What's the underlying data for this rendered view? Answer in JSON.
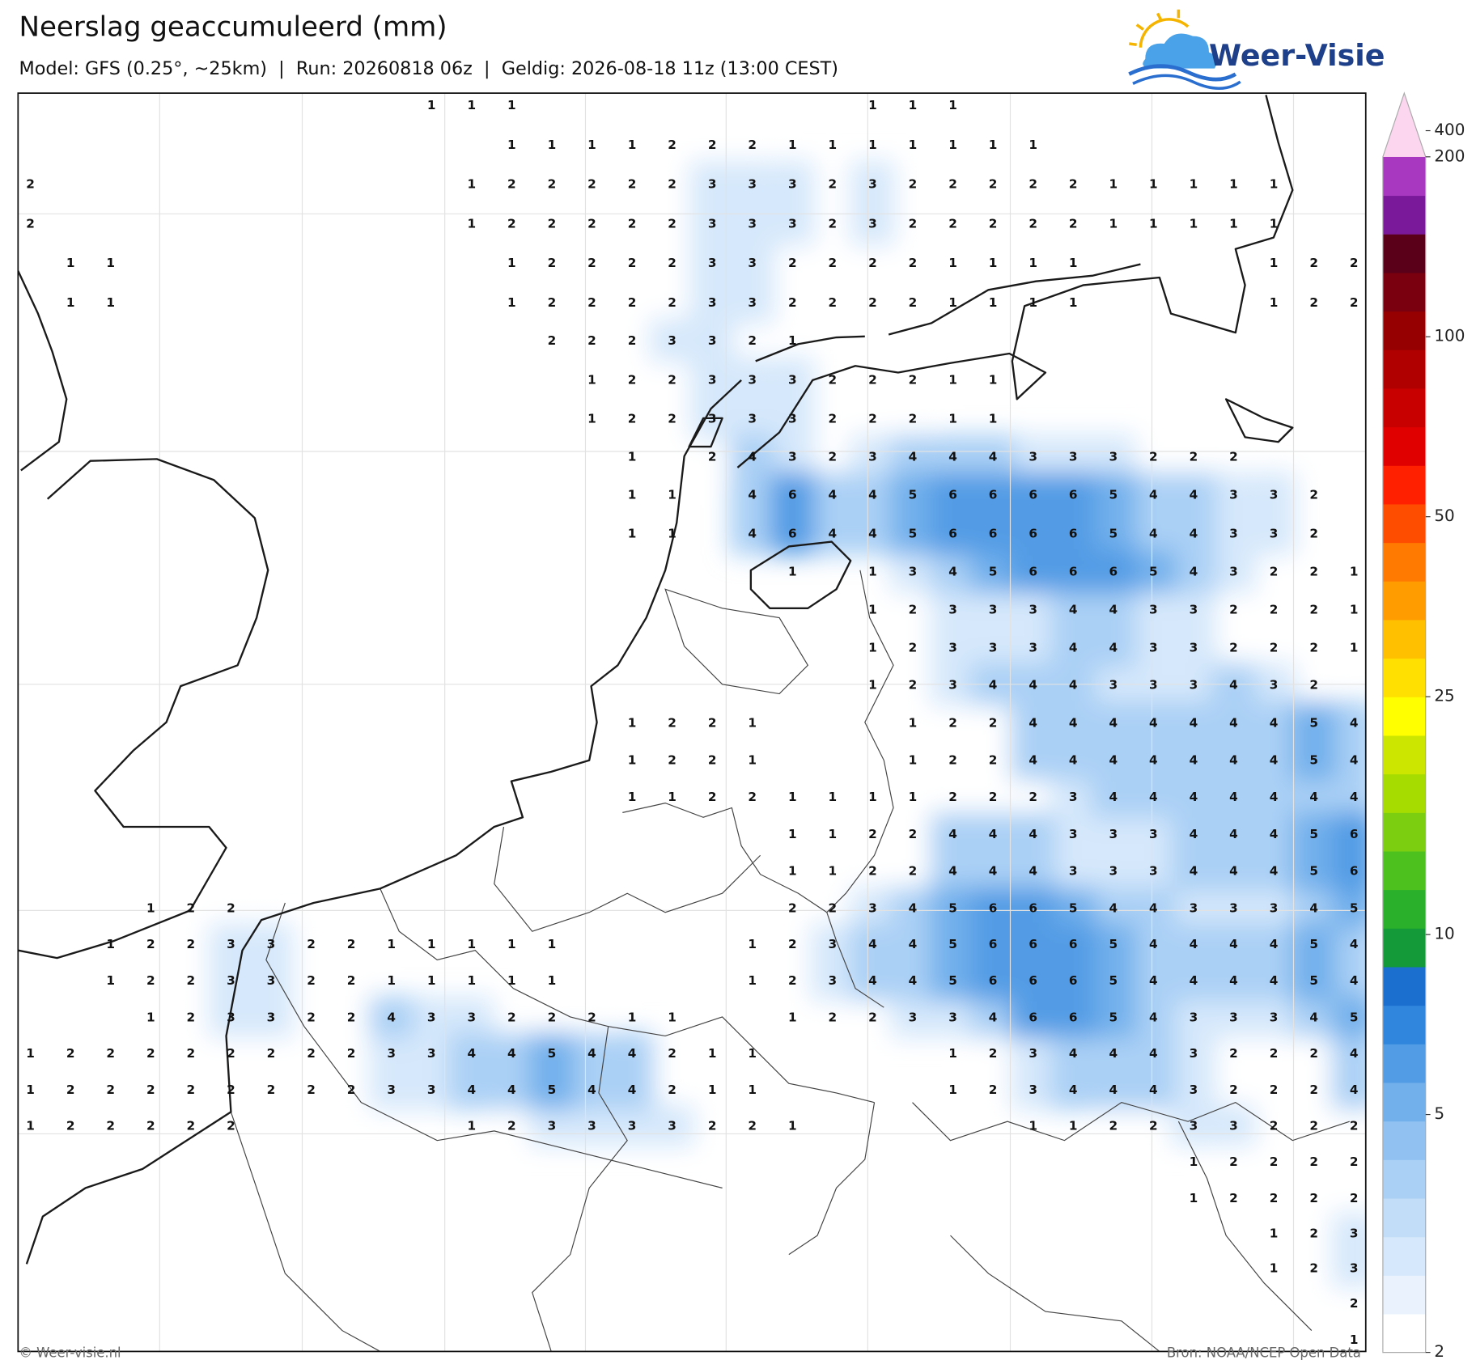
{
  "header": {
    "title": "Neerslag geaccumuleerd (mm)",
    "subtitle": "Model: GFS (0.25°, ~25km)  |  Run: 20260818 06z  |  Geldig: 2026-08-18 11z (13:00 CEST)",
    "logo": "Weer-Visie"
  },
  "map": {
    "type": "contour-grid",
    "grid": [
      [
        null,
        null,
        null,
        null,
        null,
        null,
        null,
        null,
        null,
        null,
        1,
        1,
        1,
        null,
        null,
        null,
        null,
        null,
        null,
        null,
        null,
        1,
        1,
        1,
        null,
        null,
        null,
        null,
        null,
        null,
        null,
        null,
        null,
        null
      ],
      [
        null,
        null,
        null,
        null,
        null,
        null,
        null,
        null,
        null,
        null,
        null,
        null,
        1,
        1,
        1,
        1,
        2,
        2,
        2,
        1,
        1,
        1,
        1,
        1,
        1,
        1,
        null,
        null,
        null,
        null,
        null,
        null,
        null,
        null
      ],
      [
        2,
        null,
        null,
        null,
        null,
        null,
        null,
        null,
        null,
        null,
        null,
        1,
        2,
        2,
        2,
        2,
        2,
        3,
        3,
        3,
        2,
        3,
        2,
        2,
        2,
        2,
        2,
        1,
        1,
        1,
        1,
        1,
        null,
        null
      ],
      [
        2,
        null,
        null,
        null,
        null,
        null,
        null,
        null,
        null,
        null,
        null,
        1,
        2,
        2,
        2,
        2,
        2,
        3,
        3,
        3,
        2,
        3,
        2,
        2,
        2,
        2,
        2,
        1,
        1,
        1,
        1,
        1,
        null,
        null
      ],
      [
        null,
        1,
        1,
        null,
        null,
        null,
        null,
        null,
        null,
        null,
        null,
        null,
        1,
        2,
        2,
        2,
        2,
        3,
        3,
        2,
        2,
        2,
        2,
        1,
        1,
        1,
        1,
        null,
        null,
        null,
        null,
        1,
        2,
        2
      ],
      [
        null,
        1,
        1,
        null,
        null,
        null,
        null,
        null,
        null,
        null,
        null,
        null,
        1,
        2,
        2,
        2,
        2,
        3,
        3,
        2,
        2,
        2,
        2,
        1,
        1,
        1,
        1,
        null,
        null,
        null,
        null,
        1,
        2,
        2
      ],
      [
        null,
        null,
        null,
        null,
        null,
        null,
        null,
        null,
        null,
        null,
        null,
        null,
        null,
        2,
        2,
        2,
        3,
        3,
        2,
        1,
        null,
        null,
        null,
        null,
        null,
        null,
        null,
        null,
        null,
        null,
        null,
        null,
        null,
        null
      ],
      [
        null,
        null,
        null,
        null,
        null,
        null,
        null,
        null,
        null,
        null,
        null,
        null,
        null,
        null,
        1,
        2,
        2,
        3,
        3,
        3,
        2,
        2,
        2,
        1,
        1,
        null,
        null,
        null,
        null,
        null,
        null,
        null,
        null,
        null
      ],
      [
        null,
        null,
        null,
        null,
        null,
        null,
        null,
        null,
        null,
        null,
        null,
        null,
        null,
        null,
        1,
        2,
        2,
        3,
        3,
        3,
        2,
        2,
        2,
        1,
        1,
        null,
        null,
        null,
        null,
        null,
        null,
        null,
        null,
        null
      ],
      [
        null,
        null,
        null,
        null,
        null,
        null,
        null,
        null,
        null,
        null,
        null,
        null,
        null,
        null,
        null,
        1,
        null,
        2,
        4,
        3,
        2,
        3,
        4,
        4,
        4,
        3,
        3,
        3,
        2,
        2,
        2,
        null,
        null,
        null
      ],
      [
        null,
        null,
        null,
        null,
        null,
        null,
        null,
        null,
        null,
        null,
        null,
        null,
        null,
        null,
        null,
        1,
        1,
        null,
        4,
        6,
        4,
        4,
        5,
        6,
        6,
        6,
        6,
        5,
        4,
        4,
        3,
        3,
        2,
        null
      ],
      [
        null,
        null,
        null,
        null,
        null,
        null,
        null,
        null,
        null,
        null,
        null,
        null,
        null,
        null,
        null,
        1,
        1,
        null,
        4,
        6,
        4,
        4,
        5,
        6,
        6,
        6,
        6,
        5,
        4,
        4,
        3,
        3,
        2,
        null
      ],
      [
        null,
        null,
        null,
        null,
        null,
        null,
        null,
        null,
        null,
        null,
        null,
        null,
        null,
        null,
        null,
        null,
        null,
        null,
        null,
        1,
        null,
        1,
        3,
        4,
        5,
        6,
        6,
        6,
        5,
        4,
        3,
        2,
        2,
        1
      ],
      [
        null,
        null,
        null,
        null,
        null,
        null,
        null,
        null,
        null,
        null,
        null,
        null,
        null,
        null,
        null,
        null,
        null,
        null,
        null,
        null,
        null,
        1,
        2,
        3,
        3,
        3,
        4,
        4,
        3,
        3,
        2,
        2,
        2,
        1
      ],
      [
        null,
        null,
        null,
        null,
        null,
        null,
        null,
        null,
        null,
        null,
        null,
        null,
        null,
        null,
        null,
        null,
        null,
        null,
        null,
        null,
        null,
        1,
        2,
        3,
        3,
        3,
        4,
        4,
        3,
        3,
        2,
        2,
        2,
        1
      ],
      [
        null,
        null,
        null,
        null,
        null,
        null,
        null,
        null,
        null,
        null,
        null,
        null,
        null,
        null,
        null,
        null,
        null,
        null,
        null,
        null,
        null,
        1,
        2,
        3,
        4,
        4,
        4,
        3,
        3,
        3,
        4,
        3,
        2,
        null
      ],
      [
        null,
        null,
        null,
        null,
        null,
        null,
        null,
        null,
        null,
        null,
        null,
        null,
        null,
        null,
        null,
        1,
        2,
        2,
        1,
        null,
        null,
        null,
        1,
        2,
        2,
        4,
        4,
        4,
        4,
        4,
        4,
        4,
        5,
        4
      ],
      [
        null,
        null,
        null,
        null,
        null,
        null,
        null,
        null,
        null,
        null,
        null,
        null,
        null,
        null,
        null,
        1,
        2,
        2,
        1,
        null,
        null,
        null,
        1,
        2,
        2,
        4,
        4,
        4,
        4,
        4,
        4,
        4,
        5,
        4
      ],
      [
        null,
        null,
        null,
        null,
        null,
        null,
        null,
        null,
        null,
        null,
        null,
        null,
        null,
        null,
        null,
        1,
        1,
        2,
        2,
        1,
        1,
        1,
        1,
        2,
        2,
        2,
        3,
        4,
        4,
        4,
        4,
        4,
        4,
        4
      ],
      [
        null,
        null,
        null,
        null,
        null,
        null,
        null,
        null,
        null,
        null,
        null,
        null,
        null,
        null,
        null,
        null,
        null,
        null,
        null,
        1,
        1,
        2,
        2,
        4,
        4,
        4,
        3,
        3,
        3,
        4,
        4,
        4,
        5,
        6
      ],
      [
        null,
        null,
        null,
        null,
        null,
        null,
        null,
        null,
        null,
        null,
        null,
        null,
        null,
        null,
        null,
        null,
        null,
        null,
        null,
        1,
        1,
        2,
        2,
        4,
        4,
        4,
        3,
        3,
        3,
        4,
        4,
        4,
        5,
        6
      ],
      [
        null,
        null,
        null,
        1,
        2,
        2,
        null,
        null,
        null,
        null,
        null,
        null,
        null,
        null,
        null,
        null,
        null,
        null,
        null,
        2,
        2,
        3,
        4,
        5,
        6,
        6,
        5,
        4,
        4,
        3,
        3,
        3,
        4,
        5
      ],
      [
        null,
        null,
        1,
        2,
        2,
        3,
        3,
        2,
        2,
        1,
        1,
        1,
        1,
        1,
        null,
        null,
        null,
        null,
        1,
        2,
        3,
        4,
        4,
        5,
        6,
        6,
        6,
        5,
        4,
        4,
        4,
        4,
        5,
        4
      ],
      [
        null,
        null,
        1,
        2,
        2,
        3,
        3,
        2,
        2,
        1,
        1,
        1,
        1,
        1,
        null,
        null,
        null,
        null,
        1,
        2,
        3,
        4,
        4,
        5,
        6,
        6,
        6,
        5,
        4,
        4,
        4,
        4,
        5,
        4
      ],
      [
        null,
        null,
        null,
        1,
        2,
        3,
        3,
        2,
        2,
        4,
        3,
        3,
        2,
        2,
        2,
        1,
        1,
        null,
        null,
        1,
        2,
        2,
        3,
        3,
        4,
        6,
        6,
        5,
        4,
        3,
        3,
        3,
        4,
        5
      ],
      [
        1,
        2,
        2,
        2,
        2,
        2,
        2,
        2,
        2,
        3,
        3,
        4,
        4,
        5,
        4,
        4,
        2,
        1,
        1,
        null,
        null,
        null,
        null,
        1,
        2,
        3,
        4,
        4,
        4,
        3,
        2,
        2,
        2,
        4
      ],
      [
        1,
        2,
        2,
        2,
        2,
        2,
        2,
        2,
        2,
        3,
        3,
        4,
        4,
        5,
        4,
        4,
        2,
        1,
        1,
        null,
        null,
        null,
        null,
        1,
        2,
        3,
        4,
        4,
        4,
        3,
        2,
        2,
        2,
        4
      ],
      [
        1,
        2,
        2,
        2,
        2,
        2,
        null,
        null,
        null,
        null,
        null,
        1,
        2,
        3,
        3,
        3,
        3,
        2,
        2,
        1,
        null,
        null,
        null,
        null,
        null,
        1,
        1,
        2,
        2,
        3,
        3,
        2,
        2,
        2
      ],
      [
        null,
        null,
        null,
        null,
        null,
        null,
        null,
        null,
        null,
        null,
        null,
        null,
        null,
        null,
        null,
        null,
        null,
        null,
        null,
        null,
        null,
        null,
        null,
        null,
        null,
        null,
        null,
        null,
        null,
        1,
        2,
        2,
        2,
        2
      ],
      [
        null,
        null,
        null,
        null,
        null,
        null,
        null,
        null,
        null,
        null,
        null,
        null,
        null,
        null,
        null,
        null,
        null,
        null,
        null,
        null,
        null,
        null,
        null,
        null,
        null,
        null,
        null,
        null,
        null,
        1,
        2,
        2,
        2,
        2
      ],
      [
        null,
        null,
        null,
        null,
        null,
        null,
        null,
        null,
        null,
        null,
        null,
        null,
        null,
        null,
        null,
        null,
        null,
        null,
        null,
        null,
        null,
        null,
        null,
        null,
        null,
        null,
        null,
        null,
        null,
        null,
        null,
        1,
        2,
        3
      ],
      [
        null,
        null,
        null,
        null,
        null,
        null,
        null,
        null,
        null,
        null,
        null,
        null,
        null,
        null,
        null,
        null,
        null,
        null,
        null,
        null,
        null,
        null,
        null,
        null,
        null,
        null,
        null,
        null,
        null,
        null,
        null,
        1,
        2,
        3
      ],
      [
        null,
        null,
        null,
        null,
        null,
        null,
        null,
        null,
        null,
        null,
        null,
        null,
        null,
        null,
        null,
        null,
        null,
        null,
        null,
        null,
        null,
        null,
        null,
        null,
        null,
        null,
        null,
        null,
        null,
        null,
        null,
        null,
        null,
        2
      ],
      [
        null,
        null,
        null,
        null,
        null,
        null,
        null,
        null,
        null,
        null,
        null,
        null,
        null,
        null,
        null,
        null,
        null,
        null,
        null,
        null,
        null,
        null,
        null,
        null,
        null,
        null,
        null,
        null,
        null,
        null,
        null,
        null,
        null,
        1
      ]
    ]
  },
  "colorbar": {
    "scale": "log",
    "lim": [
      2,
      200
    ],
    "ticks": [
      2,
      5,
      10,
      25,
      50,
      100,
      200,
      400
    ],
    "colors": [
      "#ffffff",
      "#eaf3fd",
      "#d6e8fb",
      "#c2ddf8",
      "#aad0f5",
      "#90c1f1",
      "#72b0ec",
      "#529ce5",
      "#2f86dc",
      "#1a6fcf",
      "#159a3a",
      "#2ab02a",
      "#4dc21e",
      "#7ccf10",
      "#a6dc00",
      "#cde600",
      "#ffff00",
      "#ffe000",
      "#ffc000",
      "#ff9d00",
      "#ff7a00",
      "#ff4d00",
      "#ff2000",
      "#e00000",
      "#c80000",
      "#b00000",
      "#960000",
      "#7a0010",
      "#5a0018",
      "#7a1a9a",
      "#a838c0",
      "#e868d0"
    ],
    "extend_color": "#fcd6ef"
  },
  "footer": {
    "left": "© Weer-visie.nl",
    "right": "Bron: NOAA/NCEP Open Data"
  }
}
